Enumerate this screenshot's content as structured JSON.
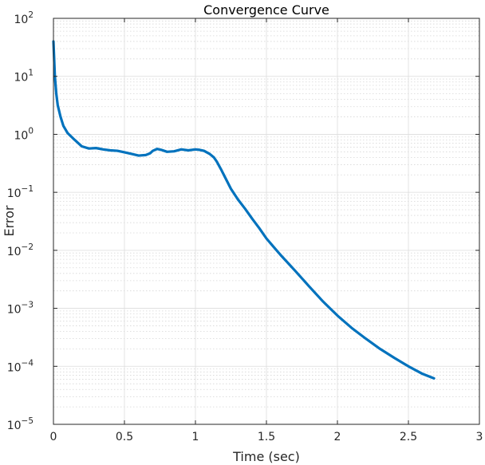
{
  "chart_data": {
    "type": "line",
    "title": "Convergence Curve",
    "xlabel": "Time (sec)",
    "ylabel": "Error",
    "xlim": [
      0,
      3
    ],
    "ylim": [
      1e-05,
      100
    ],
    "yscale": "log",
    "grid": true,
    "minor_grid": true,
    "x_ticks": [
      0,
      0.5,
      1,
      1.5,
      2,
      2.5,
      3
    ],
    "x_tick_labels": [
      "0",
      "0.5",
      "1",
      "1.5",
      "2",
      "2.5",
      "3"
    ],
    "y_tick_exponents": [
      2,
      1,
      0,
      -1,
      -2,
      -3,
      -4,
      -5
    ],
    "y_tick_base": "10",
    "line_color": "#0072BD",
    "series": [
      {
        "x": [
          0.0,
          0.005,
          0.01,
          0.02,
          0.03,
          0.05,
          0.07,
          0.1,
          0.15,
          0.2,
          0.25,
          0.3,
          0.35,
          0.4,
          0.45,
          0.5,
          0.55,
          0.6,
          0.65,
          0.68,
          0.7,
          0.73,
          0.76,
          0.8,
          0.85,
          0.9,
          0.95,
          1.0,
          1.03,
          1.06,
          1.1,
          1.13,
          1.15,
          1.18,
          1.2,
          1.25,
          1.3,
          1.35,
          1.4,
          1.45,
          1.5,
          1.55,
          1.6,
          1.7,
          1.8,
          1.9,
          2.0,
          2.1,
          2.2,
          2.3,
          2.4,
          2.5,
          2.6,
          2.68
        ],
        "y": [
          40,
          20,
          10,
          5,
          3.2,
          2.0,
          1.4,
          1.05,
          0.8,
          0.62,
          0.57,
          0.58,
          0.55,
          0.53,
          0.52,
          0.49,
          0.46,
          0.43,
          0.44,
          0.47,
          0.52,
          0.56,
          0.54,
          0.5,
          0.51,
          0.55,
          0.53,
          0.55,
          0.54,
          0.52,
          0.46,
          0.4,
          0.34,
          0.25,
          0.2,
          0.115,
          0.075,
          0.052,
          0.035,
          0.024,
          0.016,
          0.0115,
          0.0083,
          0.0045,
          0.0024,
          0.0013,
          0.00075,
          0.00046,
          0.0003,
          0.0002,
          0.00014,
          0.0001,
          7.4e-05,
          6.2e-05
        ]
      }
    ]
  }
}
